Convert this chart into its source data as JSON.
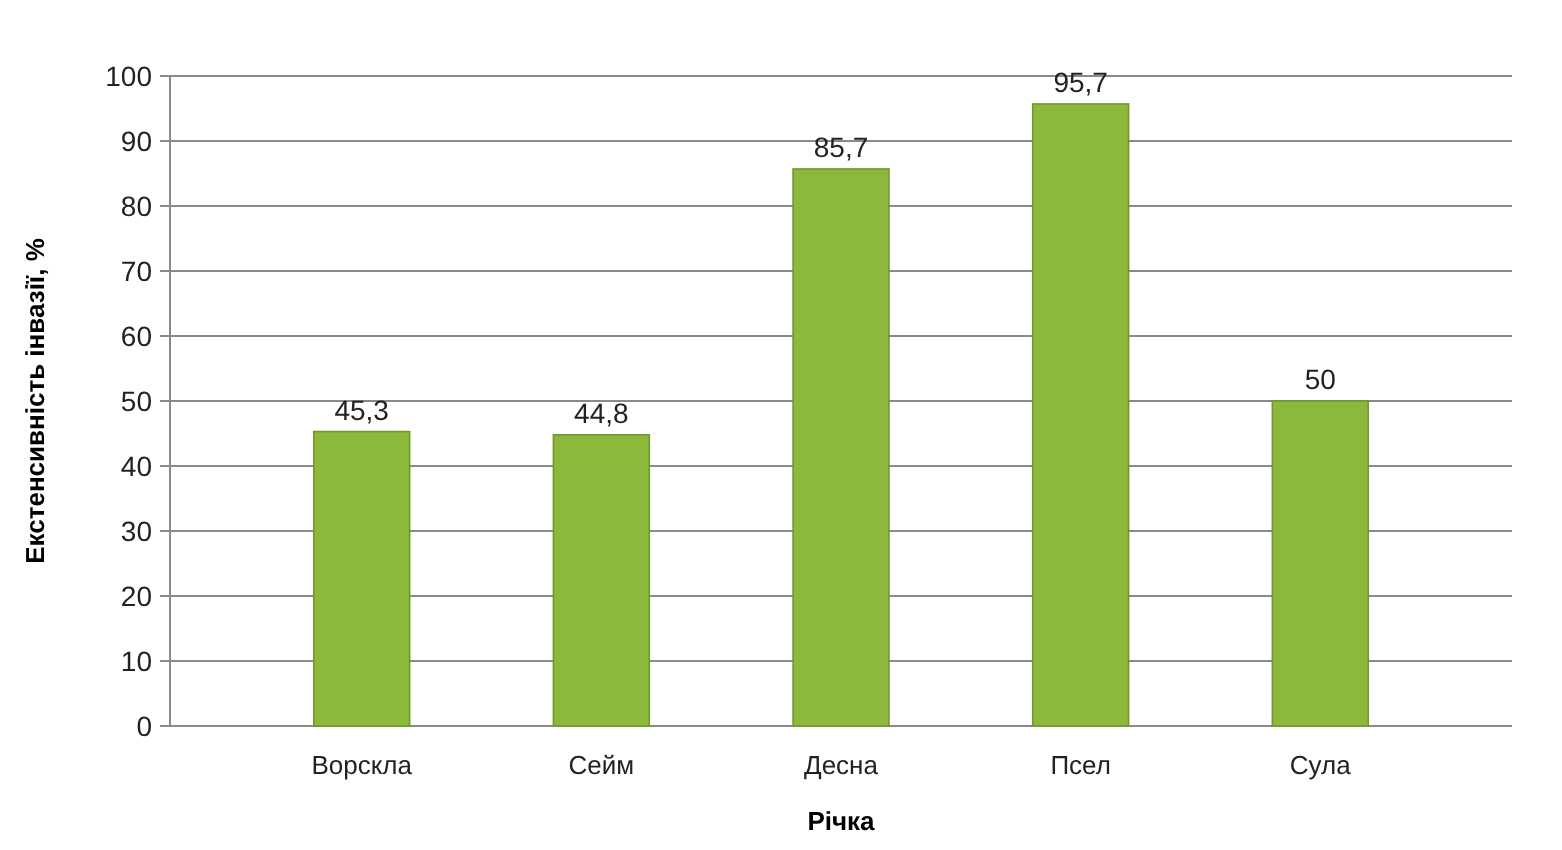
{
  "chart_data": {
    "type": "bar",
    "xlabel": "Річка",
    "ylabel": "Екстенсивність інвазії, %",
    "categories": [
      "Ворскла",
      "Сейм",
      "Десна",
      "Псел",
      "Сула"
    ],
    "values": [
      45.3,
      44.8,
      85.7,
      95.7,
      50
    ],
    "value_labels": [
      "45,3",
      "44,8",
      "85,7",
      "95,7",
      "50"
    ],
    "color": "#8cb83c",
    "ylim": [
      0,
      100
    ],
    "yticks": [
      0,
      10,
      20,
      30,
      40,
      50,
      60,
      70,
      80,
      90,
      100
    ],
    "grid": "y"
  }
}
